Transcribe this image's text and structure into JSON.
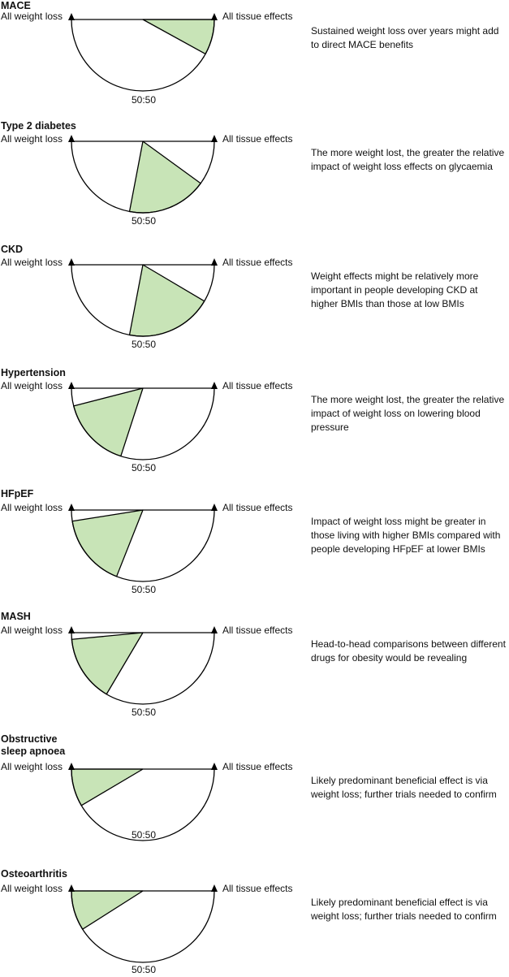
{
  "labels": {
    "left": "All weight loss",
    "right": "All tissue effects",
    "ratio": "50:50"
  },
  "colors": {
    "green_fill": "#c8e4b7",
    "stroke": "#000000"
  },
  "panels": [
    {
      "id": "mace",
      "title": "MACE",
      "note": "Sustained weight loss over years might add to direct MACE benefits",
      "shaded_fraction": {
        "from": 0.84,
        "to": 1.0
      }
    },
    {
      "id": "type-2-diabetes",
      "title": "Type 2 diabetes",
      "note": "The more weight lost, the greater the relative impact of weight loss effects on glycaemia",
      "shaded_fraction": {
        "from": 0.44,
        "to": 0.8
      }
    },
    {
      "id": "ckd",
      "title": "CKD",
      "note": "Weight effects might be relatively more important in people developing CKD at higher BMIs than those at low BMIs",
      "shaded_fraction": {
        "from": 0.44,
        "to": 0.83
      }
    },
    {
      "id": "hypertension",
      "title": "Hypertension",
      "note": "The more weight lost, the greater the relative impact of weight loss on lowering blood pressure",
      "shaded_fraction": {
        "from": 0.08,
        "to": 0.4
      }
    },
    {
      "id": "hfpef",
      "title": "HFpEF",
      "note": "Impact of weight loss might be greater in those living with higher BMIs compared with people developing HFpEF at lower BMIs",
      "shaded_fraction": {
        "from": 0.05,
        "to": 0.38
      }
    },
    {
      "id": "mash",
      "title": "MASH",
      "note": "Head-to-head comparisons between different drugs for obesity would be revealing",
      "shaded_fraction": {
        "from": 0.03,
        "to": 0.33
      }
    },
    {
      "id": "obstructive-sleep-apnoea",
      "title": "Obstructive\nsleep apnoea",
      "note": "Likely predominant beneficial effect is via weight loss; further trials needed to confirm",
      "shaded_fraction": {
        "from": 0.0,
        "to": 0.17
      }
    },
    {
      "id": "osteoarthritis",
      "title": "Osteoarthritis",
      "note": "Likely predominant beneficial effect is via weight loss; further trials needed to confirm",
      "shaded_fraction": {
        "from": 0.0,
        "to": 0.18
      }
    }
  ]
}
